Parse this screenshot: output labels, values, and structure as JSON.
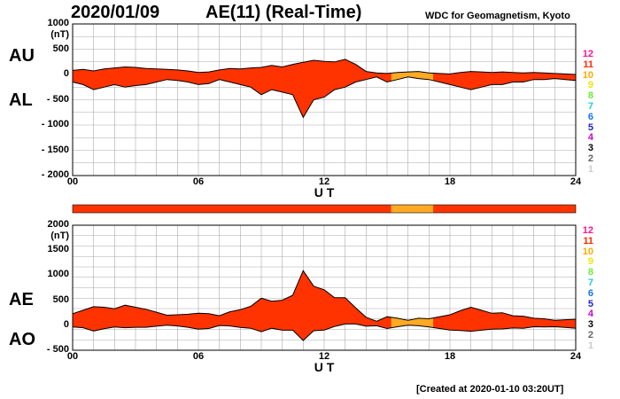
{
  "header": {
    "date": "2020/01/09",
    "title": "AE(11) (Real-Time)",
    "source": "WDC for Geomagnetism, Kyoto"
  },
  "footer": {
    "created": "[Created at 2020-01-10 03:20UT]"
  },
  "colors": {
    "fill_red": "#ff3300",
    "fill_orange": "#ffaa22",
    "line": "#000000",
    "grid": "#aaaaaa"
  },
  "legend": {
    "labels": [
      "12",
      "11",
      "10",
      "9",
      "8",
      "7",
      "6",
      "5",
      "4",
      "3",
      "2",
      "1"
    ],
    "colors": [
      "#ff1493",
      "#ff2a00",
      "#ffaa00",
      "#e8e800",
      "#66ee33",
      "#22cccc",
      "#1177ee",
      "#2222cc",
      "#cc00cc",
      "#000000",
      "#666666",
      "#cccccc"
    ]
  },
  "stations_bar": {
    "segments": [
      {
        "from": 0.0,
        "to": 15.2,
        "level": 11
      },
      {
        "from": 15.2,
        "to": 17.2,
        "level": 10
      },
      {
        "from": 17.2,
        "to": 24.0,
        "level": 11
      }
    ]
  },
  "chart_data": [
    {
      "type": "area",
      "panel": "AU/AL",
      "title": "",
      "xlabel": "U T",
      "ylabel": "(nT)",
      "xlim": [
        0,
        24
      ],
      "ylim": [
        -2000,
        1000
      ],
      "xticks": [
        0,
        6,
        12,
        18,
        24
      ],
      "xtick_labels": [
        "00",
        "06",
        "12",
        "18",
        "24"
      ],
      "yticks": [
        1000,
        500,
        0,
        -500,
        -1000,
        -1500,
        -2000
      ],
      "ytick_labels": [
        "1000",
        "500",
        "0",
        "- 500",
        "- 1000",
        "- 1500",
        "- 2000"
      ],
      "grid": true,
      "side_labels": [
        "AU",
        "AL"
      ],
      "x": [
        0,
        0.5,
        1,
        1.5,
        2,
        2.5,
        3,
        3.5,
        4,
        4.5,
        5,
        5.5,
        6,
        6.5,
        7,
        7.5,
        8,
        8.5,
        9,
        9.5,
        10,
        10.5,
        11,
        11.5,
        12,
        12.5,
        13,
        13.5,
        14,
        14.5,
        15,
        15.5,
        16,
        16.5,
        17,
        17.5,
        18,
        18.5,
        19,
        19.5,
        20,
        20.5,
        21,
        21.5,
        22,
        22.5,
        23,
        23.5,
        24
      ],
      "series": [
        {
          "name": "AU",
          "values": [
            80,
            100,
            70,
            110,
            130,
            150,
            140,
            120,
            110,
            100,
            90,
            70,
            40,
            50,
            90,
            120,
            110,
            130,
            140,
            180,
            150,
            200,
            240,
            280,
            260,
            250,
            300,
            200,
            60,
            30,
            20,
            40,
            50,
            60,
            30,
            20,
            10,
            40,
            60,
            50,
            40,
            50,
            40,
            30,
            40,
            30,
            20,
            10,
            0
          ]
        },
        {
          "name": "AL",
          "values": [
            -150,
            -200,
            -300,
            -250,
            -200,
            -250,
            -220,
            -200,
            -150,
            -100,
            -120,
            -150,
            -200,
            -180,
            -100,
            -150,
            -200,
            -250,
            -400,
            -300,
            -350,
            -400,
            -850,
            -500,
            -450,
            -300,
            -250,
            -150,
            -100,
            -50,
            -150,
            -100,
            -50,
            -80,
            -100,
            -150,
            -200,
            -250,
            -300,
            -250,
            -200,
            -200,
            -150,
            -150,
            -100,
            -100,
            -80,
            -100,
            -120
          ]
        }
      ]
    },
    {
      "type": "area",
      "panel": "AE/AO",
      "title": "",
      "xlabel": "U T",
      "ylabel": "(nT)",
      "xlim": [
        0,
        24
      ],
      "ylim": [
        -500,
        2000
      ],
      "xticks": [
        0,
        6,
        12,
        18,
        24
      ],
      "xtick_labels": [
        "00",
        "06",
        "12",
        "18",
        "24"
      ],
      "yticks": [
        2000,
        1500,
        1000,
        500,
        0,
        -500
      ],
      "ytick_labels": [
        "2000",
        "1500",
        "1000",
        "500",
        "0",
        "- 500"
      ],
      "grid": true,
      "side_labels": [
        "AE",
        "AO"
      ],
      "x": [
        0,
        0.5,
        1,
        1.5,
        2,
        2.5,
        3,
        3.5,
        4,
        4.5,
        5,
        5.5,
        6,
        6.5,
        7,
        7.5,
        8,
        8.5,
        9,
        9.5,
        10,
        10.5,
        11,
        11.5,
        12,
        12.5,
        13,
        13.5,
        14,
        14.5,
        15,
        15.5,
        16,
        16.5,
        17,
        17.5,
        18,
        18.5,
        19,
        19.5,
        20,
        20.5,
        21,
        21.5,
        22,
        22.5,
        23,
        23.5,
        24
      ],
      "series": [
        {
          "name": "AE",
          "values": [
            230,
            300,
            370,
            360,
            330,
            400,
            360,
            320,
            260,
            200,
            210,
            220,
            240,
            230,
            190,
            270,
            310,
            380,
            540,
            480,
            500,
            600,
            1090,
            780,
            710,
            550,
            550,
            350,
            160,
            80,
            170,
            140,
            100,
            140,
            130,
            170,
            210,
            290,
            360,
            300,
            240,
            250,
            190,
            180,
            140,
            130,
            100,
            110,
            120
          ]
        },
        {
          "name": "AO",
          "values": [
            -35,
            -50,
            -115,
            -70,
            -35,
            -50,
            -40,
            -40,
            -20,
            0,
            -15,
            -40,
            -80,
            -65,
            -5,
            -15,
            -45,
            -60,
            -130,
            -60,
            -100,
            -100,
            -305,
            -110,
            -95,
            -25,
            25,
            25,
            -20,
            -10,
            -65,
            -30,
            0,
            -10,
            -35,
            -65,
            -95,
            -105,
            -120,
            -100,
            -80,
            -75,
            -55,
            -60,
            -30,
            -35,
            -30,
            -45,
            -60
          ]
        }
      ]
    }
  ]
}
